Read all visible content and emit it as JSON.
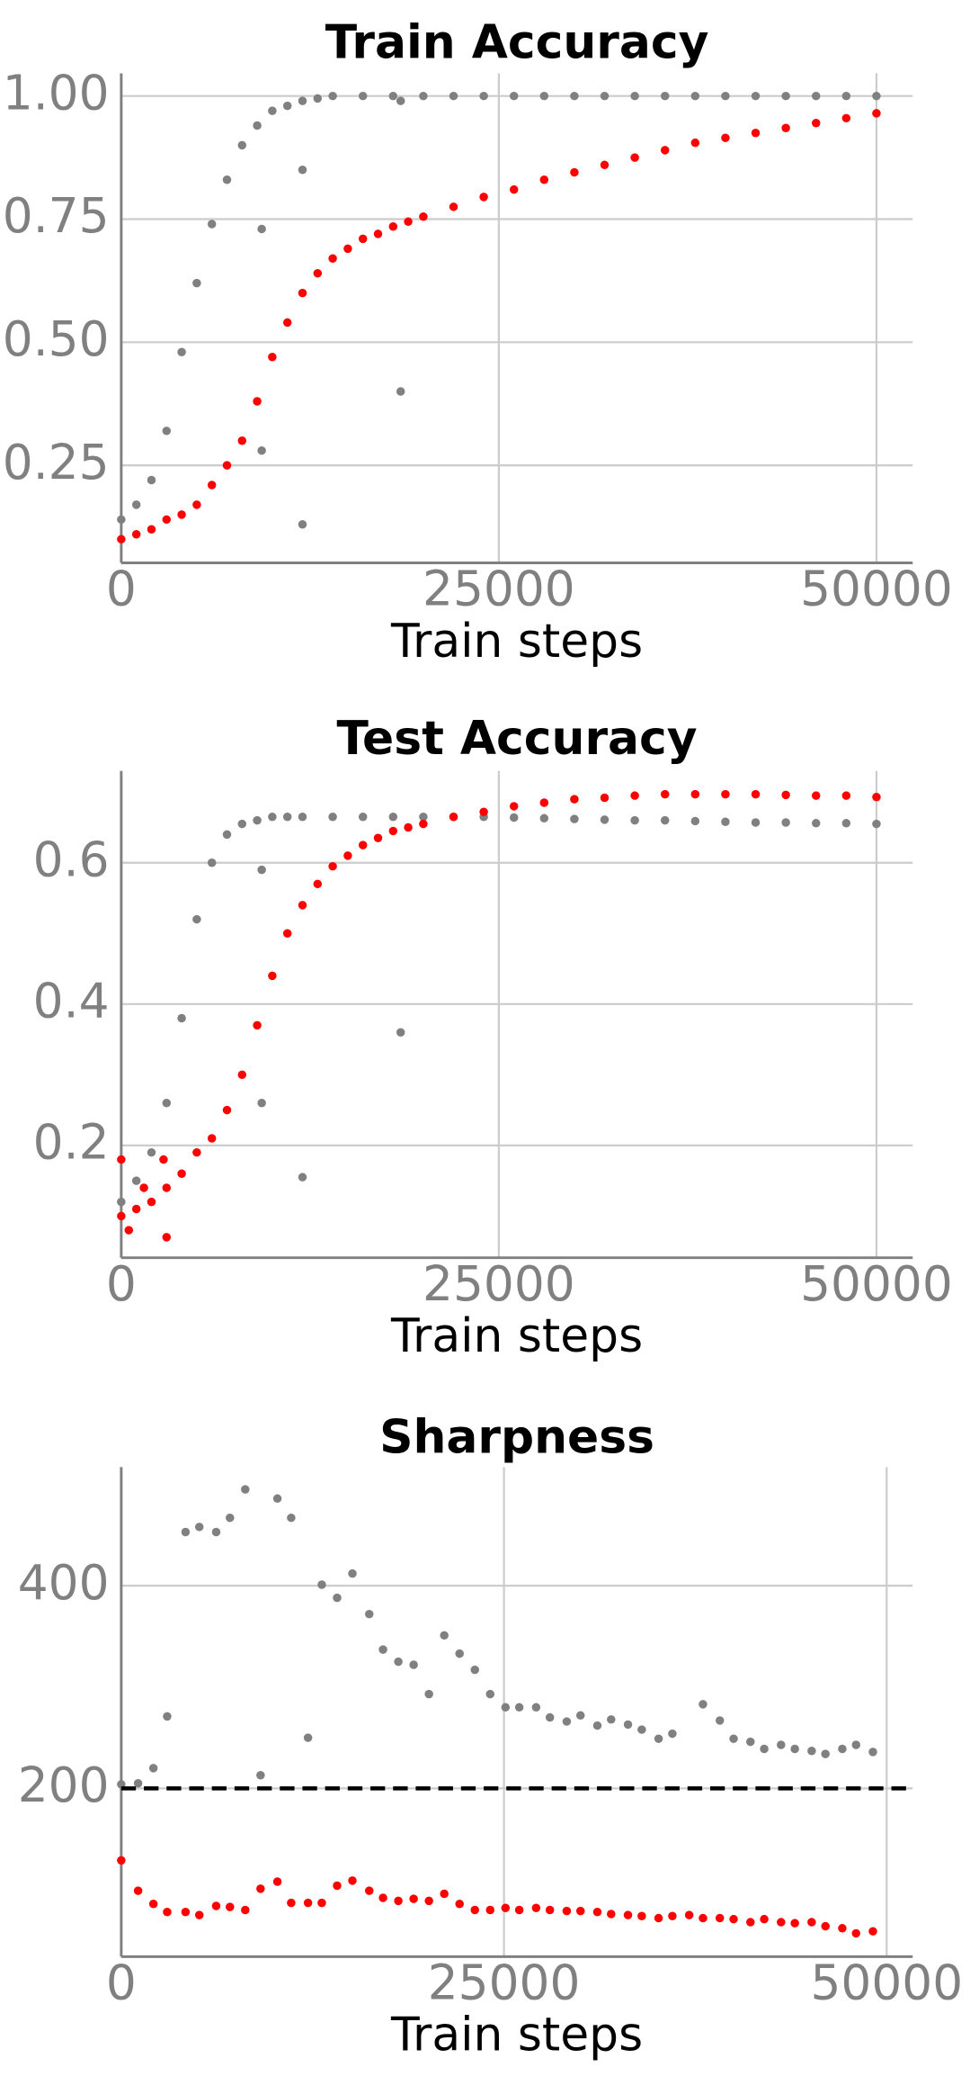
{
  "chart_data": [
    {
      "type": "scatter",
      "title": "Train Accuracy",
      "xlabel": "Train steps",
      "xlim": [
        0,
        52400
      ],
      "xticks": [
        0,
        25000,
        50000
      ],
      "ylim": [
        0.052,
        1.046
      ],
      "yticks": [
        0.25,
        {
          "value": 0.5,
          "label": "0.50"
        },
        0.75,
        {
          "value": 1,
          "label": "1.00"
        }
      ],
      "grid": true,
      "series": [
        {
          "color": "#808080",
          "x": [
            0,
            1000,
            2000,
            3000,
            4000,
            5000,
            6000,
            7000,
            8000,
            9000,
            10000,
            11000,
            12000,
            13000,
            14000,
            16000,
            18000,
            20000,
            22000,
            24000,
            26000,
            28000,
            30000,
            32000,
            34000,
            36000,
            38000,
            40000,
            42000,
            44000,
            46000,
            48000,
            50000,
            9300,
            12000,
            18500,
            9300,
            12000,
            18500
          ],
          "values": [
            0.14,
            0.17,
            0.22,
            0.32,
            0.48,
            0.62,
            0.74,
            0.83,
            0.9,
            0.94,
            0.97,
            0.98,
            0.99,
            0.995,
            1,
            1,
            1,
            1,
            1,
            1,
            1,
            1,
            1,
            1,
            1,
            1,
            1,
            1,
            1,
            1,
            1,
            1,
            1,
            0.73,
            0.85,
            0.4,
            0.28,
            0.13,
            0.99
          ]
        },
        {
          "color": "#ff0000",
          "x": [
            0,
            1000,
            2000,
            3000,
            4000,
            5000,
            6000,
            7000,
            8000,
            9000,
            10000,
            11000,
            12000,
            13000,
            14000,
            15000,
            16000,
            17000,
            18000,
            19000,
            20000,
            22000,
            24000,
            26000,
            28000,
            30000,
            32000,
            34000,
            36000,
            38000,
            40000,
            42000,
            44000,
            46000,
            48000,
            50000
          ],
          "values": [
            0.1,
            0.11,
            0.12,
            0.14,
            0.15,
            0.17,
            0.21,
            0.25,
            0.3,
            0.38,
            0.47,
            0.54,
            0.6,
            0.64,
            0.67,
            0.69,
            0.71,
            0.72,
            0.735,
            0.745,
            0.755,
            0.775,
            0.795,
            0.81,
            0.83,
            0.845,
            0.86,
            0.875,
            0.89,
            0.905,
            0.915,
            0.925,
            0.935,
            0.945,
            0.955,
            0.965
          ]
        }
      ]
    },
    {
      "type": "scatter",
      "title": "Test Accuracy",
      "xlabel": "Train steps",
      "xlim": [
        0,
        52400
      ],
      "xticks": [
        0,
        25000,
        50000
      ],
      "ylim": [
        0.041,
        0.73
      ],
      "yticks": [
        0.2,
        0.4,
        0.6
      ],
      "grid": true,
      "series": [
        {
          "color": "#808080",
          "x": [
            0,
            1000,
            2000,
            3000,
            4000,
            5000,
            6000,
            7000,
            8000,
            9000,
            10000,
            11000,
            12000,
            14000,
            16000,
            18000,
            20000,
            22000,
            24000,
            26000,
            28000,
            30000,
            32000,
            34000,
            36000,
            38000,
            40000,
            42000,
            44000,
            46000,
            48000,
            50000,
            9300,
            9300,
            12000,
            18500
          ],
          "values": [
            0.12,
            0.15,
            0.19,
            0.26,
            0.38,
            0.52,
            0.6,
            0.64,
            0.655,
            0.66,
            0.665,
            0.665,
            0.665,
            0.665,
            0.665,
            0.665,
            0.665,
            0.665,
            0.665,
            0.664,
            0.663,
            0.662,
            0.661,
            0.66,
            0.66,
            0.659,
            0.658,
            0.657,
            0.657,
            0.656,
            0.656,
            0.655,
            0.59,
            0.26,
            0.155,
            0.36
          ]
        },
        {
          "color": "#ff0000",
          "x": [
            0,
            1000,
            2000,
            3000,
            4000,
            5000,
            6000,
            7000,
            8000,
            9000,
            10000,
            11000,
            12000,
            13000,
            14000,
            15000,
            16000,
            17000,
            18000,
            19000,
            20000,
            22000,
            24000,
            26000,
            28000,
            30000,
            32000,
            34000,
            36000,
            38000,
            40000,
            42000,
            44000,
            46000,
            48000,
            50000,
            0,
            500,
            1500,
            3000,
            2800
          ],
          "values": [
            0.1,
            0.11,
            0.12,
            0.14,
            0.16,
            0.19,
            0.21,
            0.25,
            0.3,
            0.37,
            0.44,
            0.5,
            0.54,
            0.57,
            0.595,
            0.61,
            0.625,
            0.635,
            0.645,
            0.65,
            0.655,
            0.665,
            0.672,
            0.68,
            0.685,
            0.69,
            0.692,
            0.695,
            0.697,
            0.697,
            0.697,
            0.697,
            0.696,
            0.695,
            0.695,
            0.693,
            0.18,
            0.08,
            0.14,
            0.07,
            0.18
          ]
        }
      ]
    },
    {
      "type": "scatter",
      "title": "Sharpness",
      "xlabel": "Train steps",
      "xlim": [
        0,
        51700
      ],
      "xticks": [
        0,
        25000,
        50000
      ],
      "ylim": [
        34,
        517
      ],
      "yticks": [
        200,
        400
      ],
      "grid": true,
      "reference_line": {
        "value": 200,
        "color": "#000000",
        "style": "dashed"
      },
      "series": [
        {
          "color": "#808080",
          "x": [
            0,
            1100,
            2100,
            3000,
            4200,
            5100,
            6200,
            7100,
            8100,
            9100,
            10200,
            11100,
            12200,
            13100,
            14100,
            15100,
            16200,
            17100,
            18100,
            19100,
            20100,
            21100,
            22100,
            23100,
            24100,
            25100,
            26000,
            27100,
            28000,
            29100,
            30000,
            31100,
            32000,
            33100,
            34000,
            35100,
            36000,
            38000,
            39100,
            40000,
            41100,
            42000,
            43100,
            44000,
            45100,
            46000,
            47100,
            48000,
            49100
          ],
          "values": [
            204,
            205,
            220,
            271,
            453,
            458,
            453,
            467,
            495,
            213,
            486,
            467,
            250,
            401,
            388,
            412,
            372,
            337,
            325,
            322,
            293,
            351,
            333,
            317,
            293,
            280,
            280,
            280,
            270,
            266,
            272,
            262,
            268,
            263,
            258,
            249,
            254,
            283,
            267,
            249,
            246,
            239,
            243,
            239,
            237,
            234,
            239,
            243,
            236
          ]
        },
        {
          "color": "#ff0000",
          "x": [
            0,
            1100,
            2100,
            3000,
            4200,
            5100,
            6200,
            7100,
            8100,
            9100,
            10200,
            11100,
            12200,
            13100,
            14100,
            15100,
            16200,
            17100,
            18100,
            19100,
            20100,
            21100,
            22100,
            23100,
            24100,
            25100,
            26000,
            27100,
            28000,
            29100,
            30000,
            31100,
            32000,
            33100,
            34000,
            35100,
            36000,
            37100,
            38000,
            39100,
            40000,
            41100,
            42000,
            43100,
            44000,
            45100,
            46000,
            47100,
            48000,
            49100
          ],
          "values": [
            129,
            99,
            86,
            78,
            78,
            75,
            84,
            83,
            80,
            101,
            108,
            87,
            87,
            87,
            104,
            109,
            99,
            92,
            89,
            91,
            89,
            96,
            86,
            80,
            80,
            82,
            80,
            82,
            80,
            79,
            79,
            78,
            76,
            75,
            74,
            72,
            74,
            75,
            72,
            72,
            71,
            68,
            71,
            68,
            67,
            68,
            64,
            62,
            57,
            59
          ]
        }
      ]
    }
  ]
}
